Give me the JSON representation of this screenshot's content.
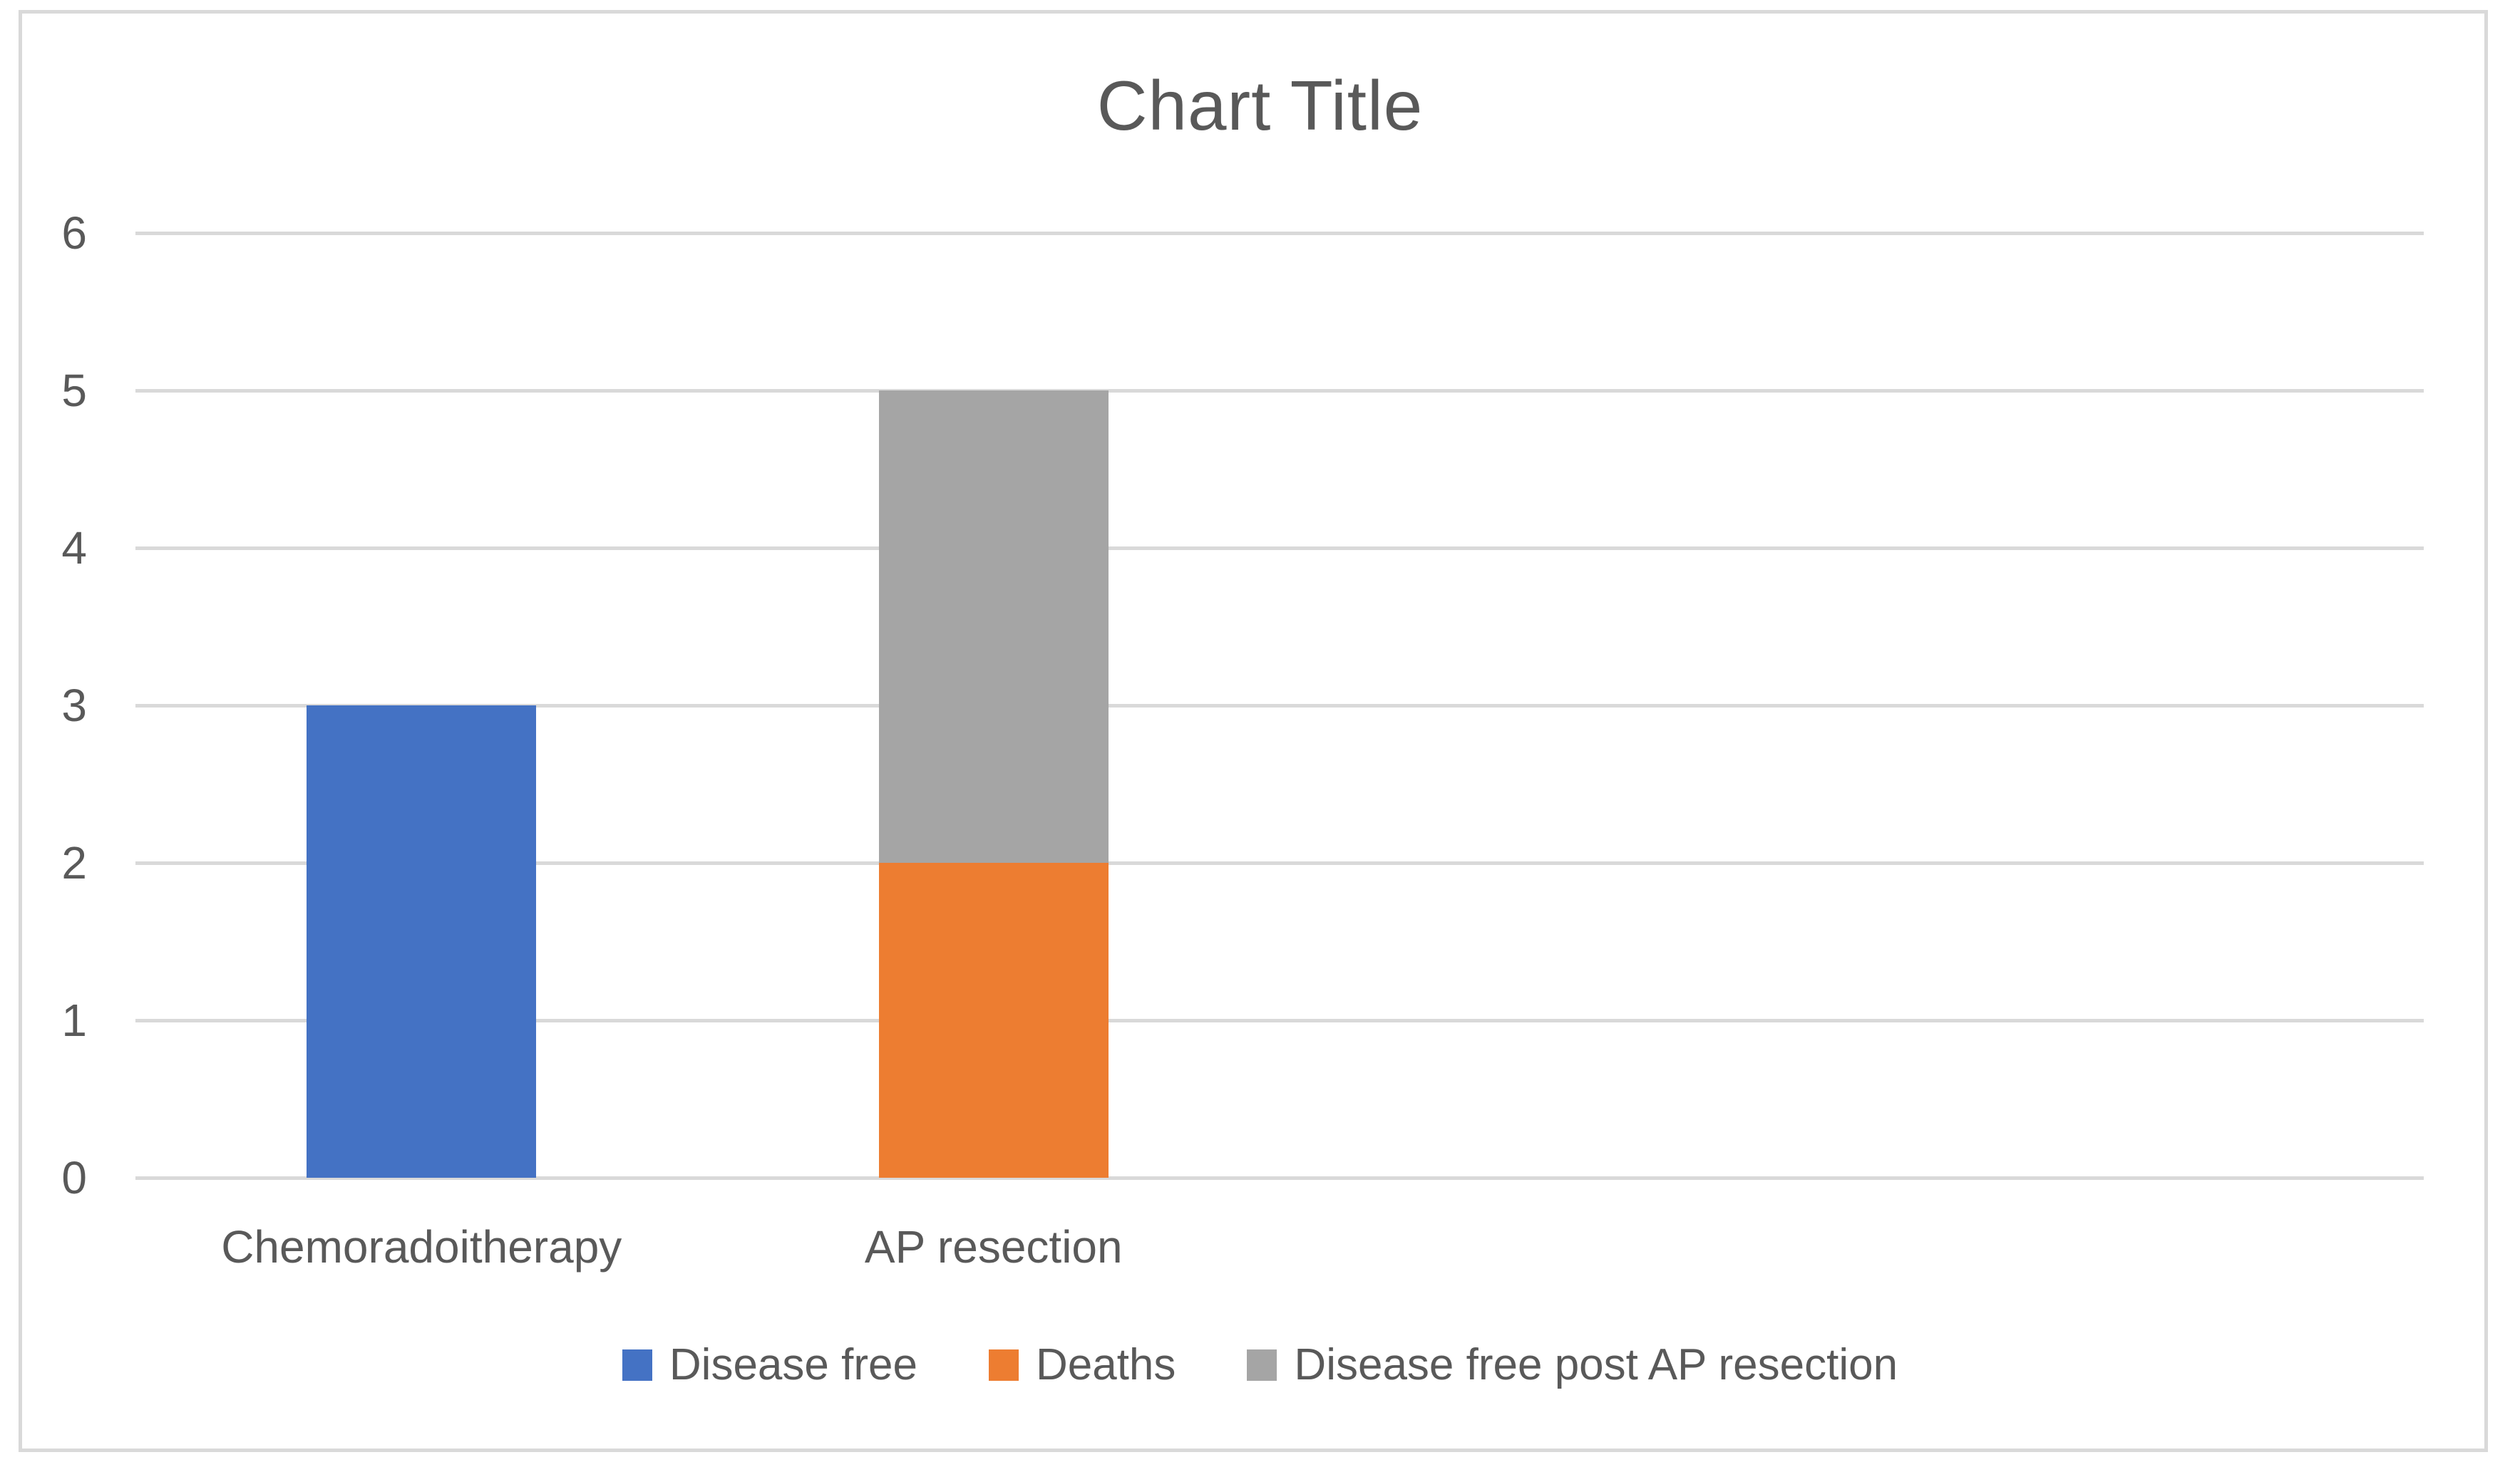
{
  "chart_data": {
    "type": "bar",
    "stacked": true,
    "title": "Chart Title",
    "categories": [
      "Chemoradoitherapy",
      "AP resection"
    ],
    "series": [
      {
        "name": "Disease free",
        "color": "#4472C4",
        "values": [
          3,
          0
        ]
      },
      {
        "name": "Deaths",
        "color": "#ED7D31",
        "values": [
          0,
          2
        ]
      },
      {
        "name": "Disease free post AP resection",
        "color": "#A5A5A5",
        "values": [
          0,
          3
        ]
      }
    ],
    "ylim": [
      0,
      6
    ],
    "yticks": [
      0,
      1,
      2,
      3,
      4,
      5,
      6
    ],
    "grid": true,
    "legend_position": "bottom",
    "colors": {
      "text": "#595959",
      "gridline": "#D9D9D9",
      "border": "#D9D9D9",
      "background": "#FFFFFF"
    }
  }
}
